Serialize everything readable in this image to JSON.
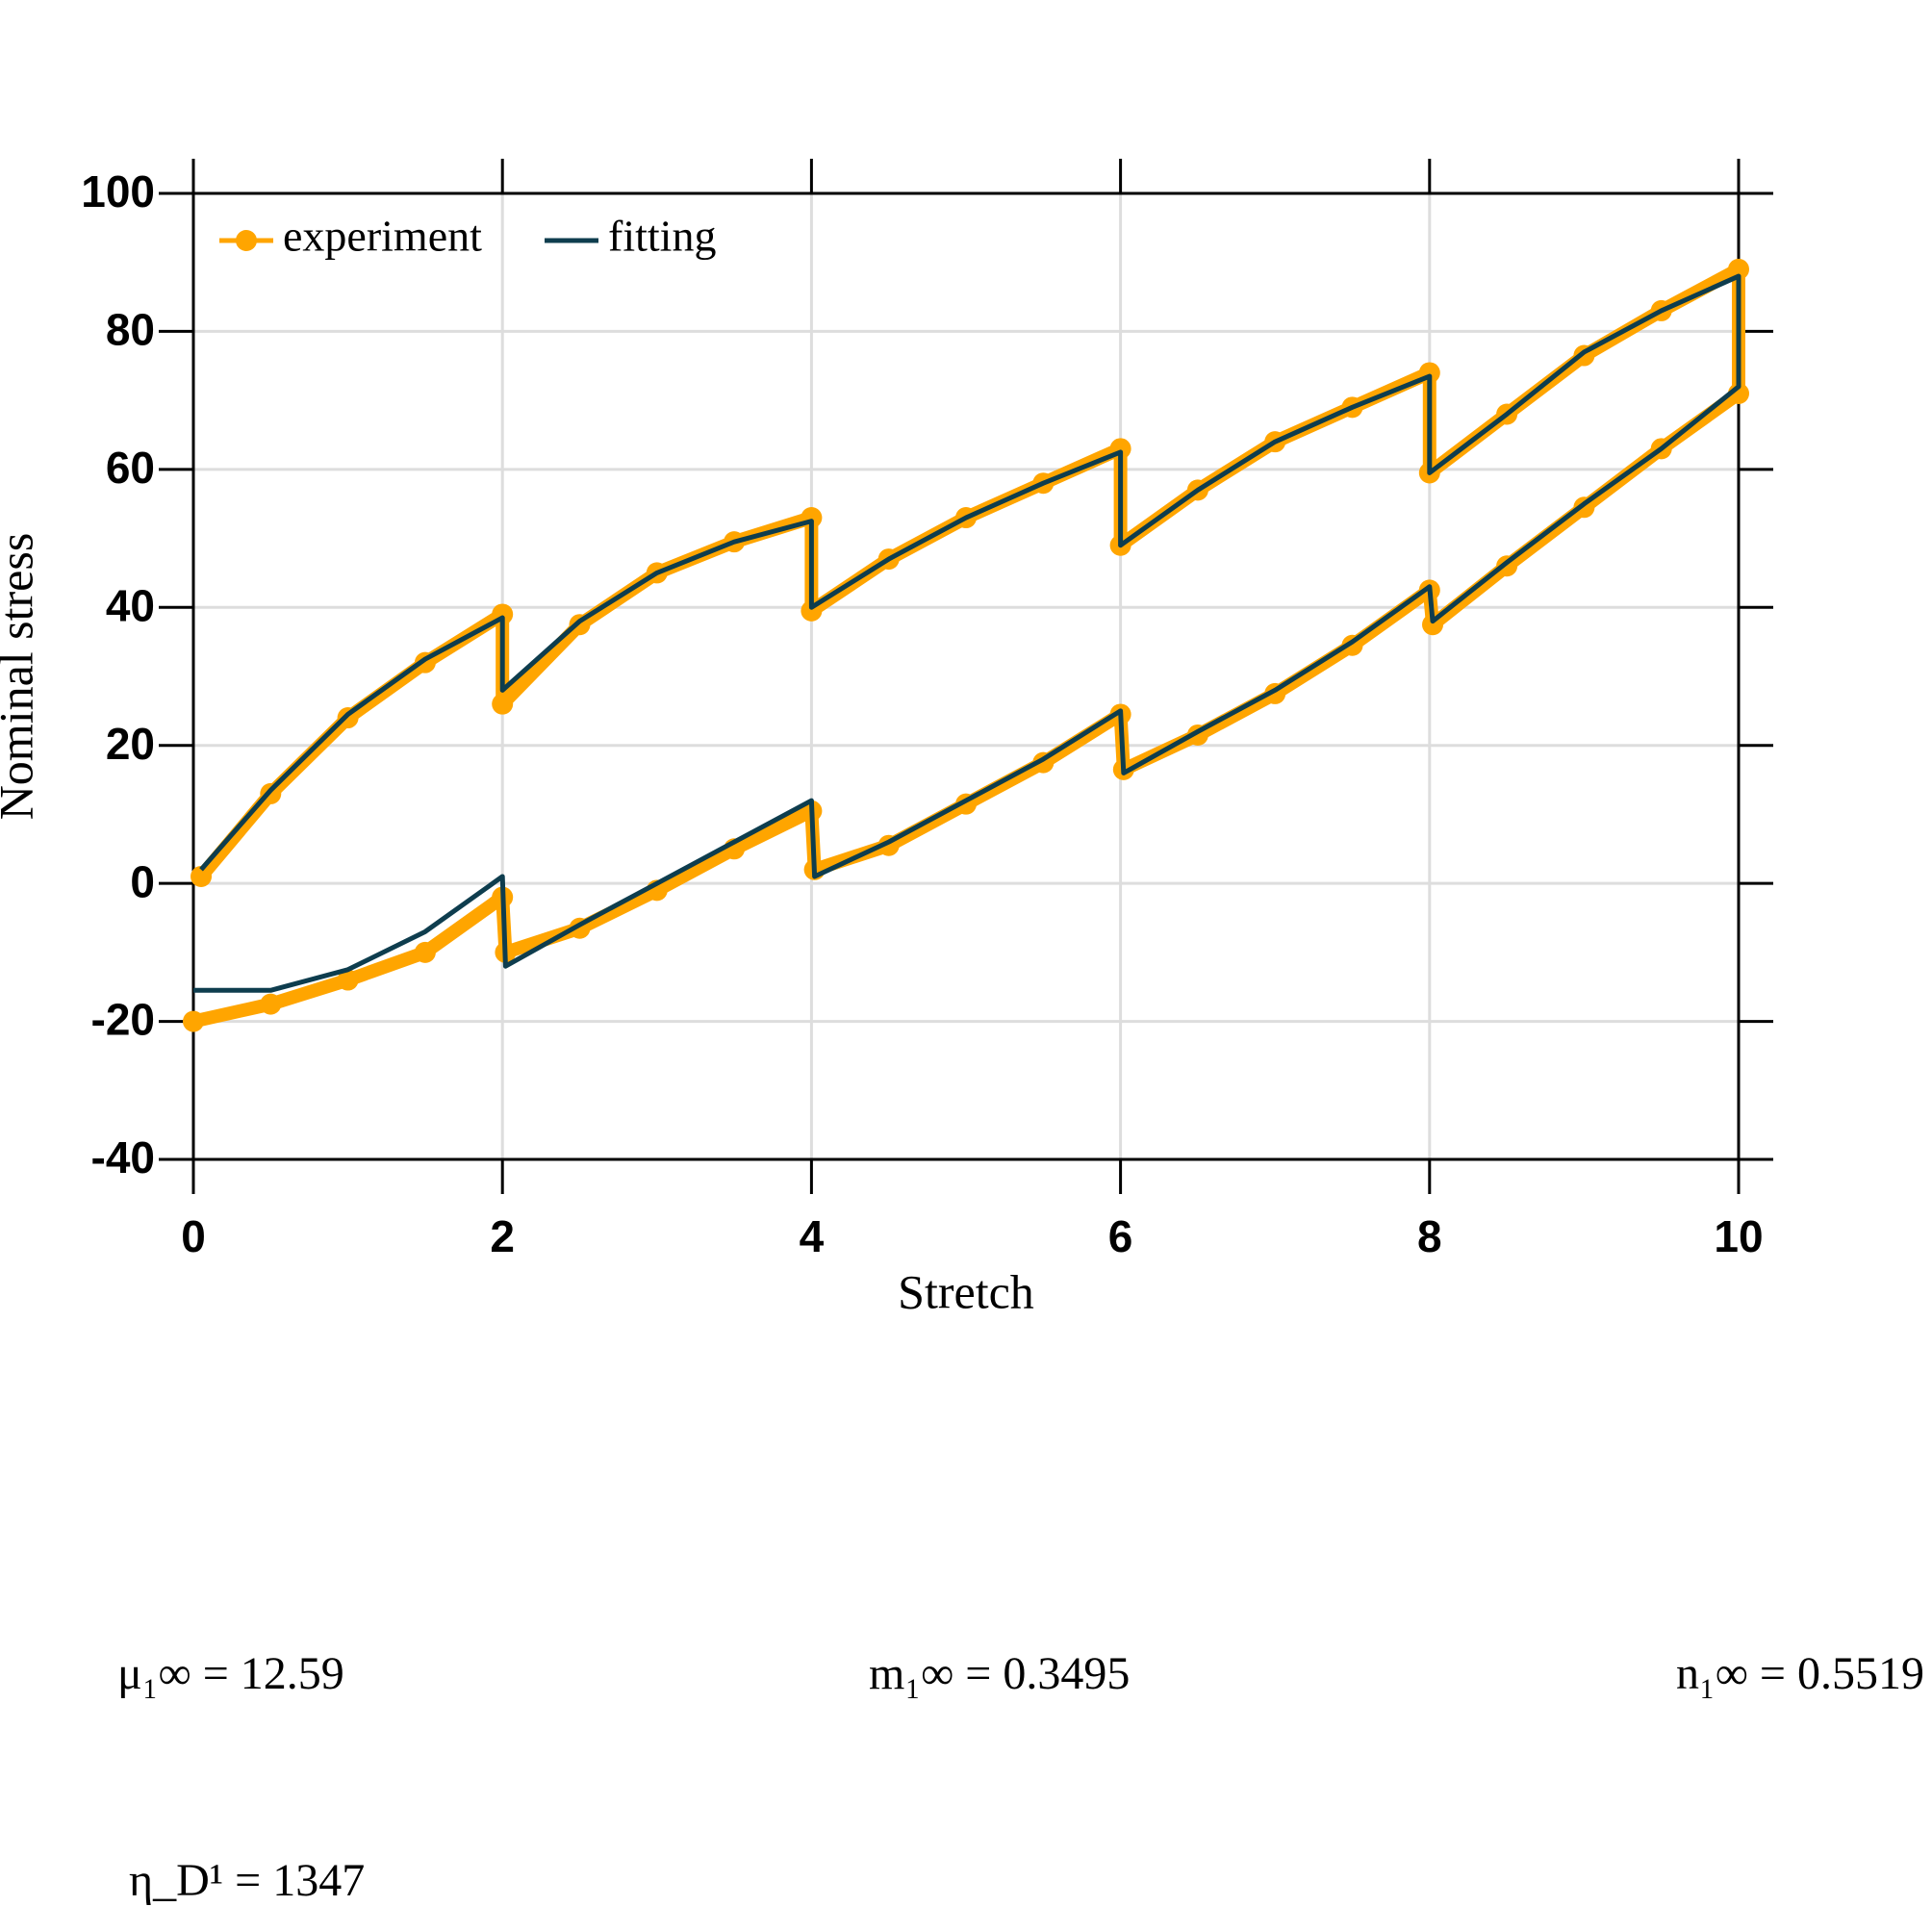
{
  "chart_data": {
    "type": "line",
    "xlabel": "Stretch",
    "ylabel": "Nominal stress",
    "x": [
      0.05,
      0.5,
      1,
      1.5,
      2,
      2,
      2.5,
      3,
      3.5,
      4,
      4,
      4.5,
      5,
      5.5,
      6,
      6,
      6.5,
      7,
      7.5,
      8,
      8,
      8.5,
      9,
      9.5,
      10,
      10,
      9.5,
      9,
      8.5,
      8.02,
      8,
      7.5,
      7,
      6.5,
      6.02,
      6,
      5.5,
      5,
      4.5,
      4.02,
      4,
      3.5,
      3,
      2.5,
      2.02,
      2,
      1.5,
      1,
      0.5,
      0
    ],
    "series": [
      {
        "name": "experiment",
        "color": "#ffa500",
        "values": [
          1,
          13,
          24,
          32,
          39,
          26,
          37.5,
          45,
          49.5,
          53,
          39.5,
          47,
          53,
          58,
          63,
          49,
          57,
          64,
          69,
          74,
          59.5,
          68,
          76.5,
          83,
          89,
          71,
          63,
          54.5,
          46,
          37.5,
          42.5,
          34.5,
          27.5,
          21.5,
          16.5,
          24.5,
          17.5,
          11.5,
          5.5,
          2,
          10.5,
          5,
          -1,
          -6.5,
          -10,
          -2,
          -10,
          -14,
          -17.5,
          -20
        ]
      },
      {
        "name": "fitting",
        "color": "#0e3d4e",
        "values": [
          2,
          13.5,
          24.5,
          32.5,
          38.5,
          28,
          38,
          45,
          49.5,
          52.5,
          40,
          47,
          53,
          58,
          62.5,
          49,
          57,
          64,
          69,
          73.5,
          59.5,
          68,
          77,
          83,
          88,
          72,
          63,
          55,
          46.5,
          38,
          43,
          35,
          28,
          22,
          16,
          25,
          18,
          12,
          6,
          1,
          12,
          6,
          0,
          -6,
          -12,
          1,
          -7,
          -12.5,
          -15.5,
          -15.5
        ]
      }
    ],
    "xlim": [
      0,
      10
    ],
    "xticks": [
      0,
      2,
      4,
      6,
      8,
      10
    ],
    "ylim": [
      -40,
      100
    ],
    "yticks": [
      -40,
      -20,
      0,
      20,
      40,
      60,
      80,
      100
    ],
    "grid": true,
    "legend": "top-left",
    "annotations": [
      "μ₁∞ = 12.59",
      "m₁∞ = 0.3495",
      "n₁∞ = 0.5519",
      "η_D¹ = 1347"
    ]
  }
}
